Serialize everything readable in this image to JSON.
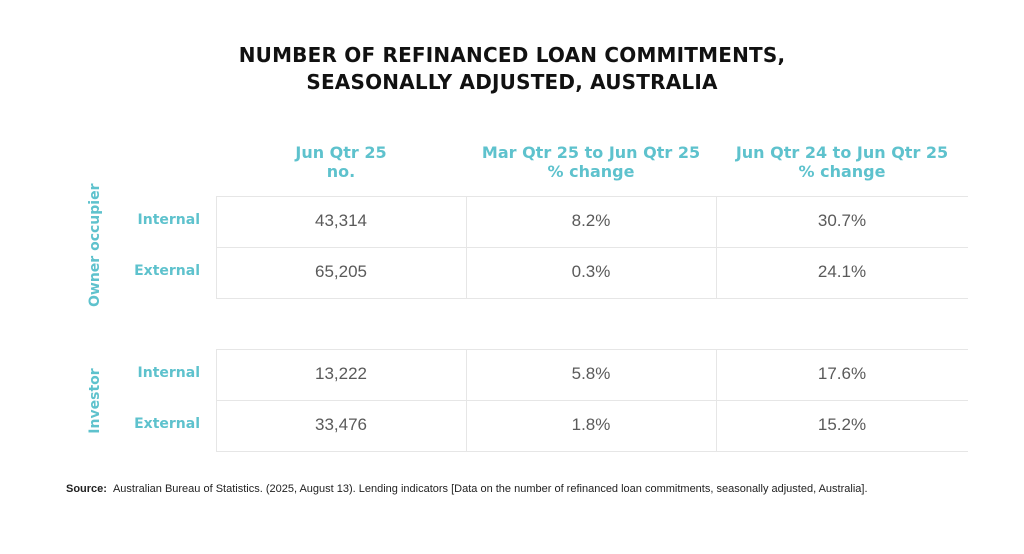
{
  "chart_data": {
    "type": "table",
    "title": [
      "NUMBER OF REFINANCED LOAN COMMITMENTS,",
      "SEASONALLY ADJUSTED, AUSTRALIA"
    ],
    "columns": [
      [
        "Jun Qtr 25",
        "no."
      ],
      [
        "Mar Qtr 25 to Jun Qtr 25",
        "% change"
      ],
      [
        "Jun Qtr 24 to Jun Qtr 25",
        "% change"
      ]
    ],
    "groups": [
      {
        "name": "Owner occupier",
        "rows": [
          {
            "label": "Internal",
            "values": [
              "43,314",
              "8.2%",
              "30.7%"
            ]
          },
          {
            "label": "External",
            "values": [
              "65,205",
              "0.3%",
              "24.1%"
            ]
          }
        ]
      },
      {
        "name": "Investor",
        "rows": [
          {
            "label": "Internal",
            "values": [
              "13,222",
              "5.8%",
              "17.6%"
            ]
          },
          {
            "label": "External",
            "values": [
              "33,476",
              "1.8%",
              "15.2%"
            ]
          }
        ]
      }
    ],
    "accent_color": "#5ec2cd",
    "grid_color": "#e6e6e6"
  },
  "source": {
    "label": "Source:",
    "text": "Australian Bureau of Statistics. (2025, August 13). Lending indicators [Data on the number of refinanced loan commitments, seasonally adjusted, Australia]."
  }
}
